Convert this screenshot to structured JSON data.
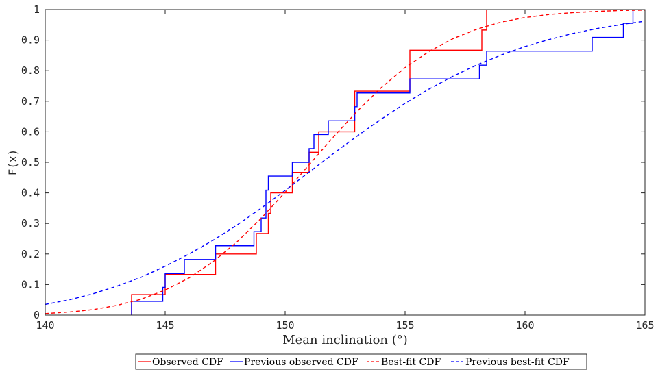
{
  "chart_data": {
    "type": "line",
    "title": "",
    "xlabel": "Mean inclination (°)",
    "ylabel": "F(x)",
    "xlim": [
      140,
      165
    ],
    "ylim": [
      0,
      1
    ],
    "x_ticks": [
      140,
      145,
      150,
      155,
      160,
      165
    ],
    "x_tick_labels": [
      "140",
      "145",
      "150",
      "155",
      "160",
      "165"
    ],
    "y_ticks": [
      0,
      0.1,
      0.2,
      0.3,
      0.4,
      0.5,
      0.6,
      0.7,
      0.8,
      0.9,
      1
    ],
    "y_tick_labels": [
      "0",
      "0.1",
      "0.2",
      "0.3",
      "0.4",
      "0.5",
      "0.6",
      "0.7",
      "0.8",
      "0.9",
      "1"
    ],
    "grid": false,
    "legend_position": "bottom",
    "series": [
      {
        "name": "Observed CDF",
        "color": "#ff0000",
        "style": "step",
        "points": [
          [
            143.6,
            0
          ],
          [
            143.6,
            0.067
          ],
          [
            145.0,
            0.067
          ],
          [
            145.0,
            0.133
          ],
          [
            147.1,
            0.133
          ],
          [
            147.1,
            0.2
          ],
          [
            148.8,
            0.2
          ],
          [
            148.8,
            0.267
          ],
          [
            149.3,
            0.267
          ],
          [
            149.3,
            0.333
          ],
          [
            149.4,
            0.333
          ],
          [
            149.4,
            0.4
          ],
          [
            150.3,
            0.4
          ],
          [
            150.3,
            0.467
          ],
          [
            151.0,
            0.467
          ],
          [
            151.0,
            0.533
          ],
          [
            151.4,
            0.533
          ],
          [
            151.4,
            0.6
          ],
          [
            152.9,
            0.6
          ],
          [
            152.9,
            0.733
          ],
          [
            155.2,
            0.733
          ],
          [
            155.2,
            0.867
          ],
          [
            158.2,
            0.867
          ],
          [
            158.2,
            0.933
          ],
          [
            158.4,
            0.933
          ],
          [
            158.4,
            1.0
          ],
          [
            165,
            1.0
          ]
        ]
      },
      {
        "name": "Previous observed CDF",
        "color": "#0000ff",
        "style": "step",
        "points": [
          [
            143.6,
            0
          ],
          [
            143.6,
            0.045
          ],
          [
            144.9,
            0.045
          ],
          [
            144.9,
            0.091
          ],
          [
            145.0,
            0.091
          ],
          [
            145.0,
            0.136
          ],
          [
            145.8,
            0.136
          ],
          [
            145.8,
            0.182
          ],
          [
            147.1,
            0.182
          ],
          [
            147.1,
            0.227
          ],
          [
            148.7,
            0.227
          ],
          [
            148.7,
            0.273
          ],
          [
            149.0,
            0.273
          ],
          [
            149.0,
            0.318
          ],
          [
            149.2,
            0.318
          ],
          [
            149.2,
            0.409
          ],
          [
            149.3,
            0.409
          ],
          [
            149.3,
            0.455
          ],
          [
            150.3,
            0.455
          ],
          [
            150.3,
            0.5
          ],
          [
            151.0,
            0.5
          ],
          [
            151.0,
            0.545
          ],
          [
            151.2,
            0.545
          ],
          [
            151.2,
            0.591
          ],
          [
            151.8,
            0.591
          ],
          [
            151.8,
            0.636
          ],
          [
            152.9,
            0.636
          ],
          [
            152.9,
            0.682
          ],
          [
            153.0,
            0.682
          ],
          [
            153.0,
            0.727
          ],
          [
            155.2,
            0.727
          ],
          [
            155.2,
            0.773
          ],
          [
            158.1,
            0.773
          ],
          [
            158.1,
            0.818
          ],
          [
            158.4,
            0.818
          ],
          [
            158.4,
            0.864
          ],
          [
            162.8,
            0.864
          ],
          [
            162.8,
            0.909
          ],
          [
            164.1,
            0.909
          ],
          [
            164.1,
            0.955
          ],
          [
            164.5,
            0.955
          ],
          [
            164.5,
            1.0
          ],
          [
            165,
            1.0
          ]
        ]
      },
      {
        "name": "Best-fit CDF",
        "color": "#ff0000",
        "style": "dashed",
        "points": [
          [
            140,
            0.005
          ],
          [
            141,
            0.01
          ],
          [
            142,
            0.018
          ],
          [
            143,
            0.032
          ],
          [
            144,
            0.052
          ],
          [
            145,
            0.082
          ],
          [
            146,
            0.122
          ],
          [
            147,
            0.175
          ],
          [
            148,
            0.24
          ],
          [
            149,
            0.317
          ],
          [
            150,
            0.402
          ],
          [
            151,
            0.492
          ],
          [
            152,
            0.582
          ],
          [
            153,
            0.667
          ],
          [
            154,
            0.744
          ],
          [
            155,
            0.81
          ],
          [
            156,
            0.863
          ],
          [
            157,
            0.905
          ],
          [
            158,
            0.936
          ],
          [
            159,
            0.959
          ],
          [
            160,
            0.974
          ],
          [
            161,
            0.984
          ],
          [
            162,
            0.99
          ],
          [
            163,
            0.994
          ],
          [
            164,
            0.997
          ],
          [
            165,
            0.998
          ]
        ]
      },
      {
        "name": "Previous best-fit CDF",
        "color": "#0000ff",
        "style": "dashed",
        "points": [
          [
            140,
            0.035
          ],
          [
            141,
            0.05
          ],
          [
            142,
            0.07
          ],
          [
            143,
            0.095
          ],
          [
            144,
            0.124
          ],
          [
            145,
            0.16
          ],
          [
            146,
            0.2
          ],
          [
            147,
            0.245
          ],
          [
            148,
            0.295
          ],
          [
            149,
            0.35
          ],
          [
            150,
            0.408
          ],
          [
            151,
            0.468
          ],
          [
            152,
            0.528
          ],
          [
            153,
            0.586
          ],
          [
            154,
            0.641
          ],
          [
            155,
            0.693
          ],
          [
            156,
            0.74
          ],
          [
            157,
            0.782
          ],
          [
            158,
            0.819
          ],
          [
            159,
            0.851
          ],
          [
            160,
            0.879
          ],
          [
            161,
            0.902
          ],
          [
            162,
            0.922
          ],
          [
            163,
            0.938
          ],
          [
            164,
            0.951
          ],
          [
            165,
            0.962
          ]
        ]
      }
    ]
  }
}
